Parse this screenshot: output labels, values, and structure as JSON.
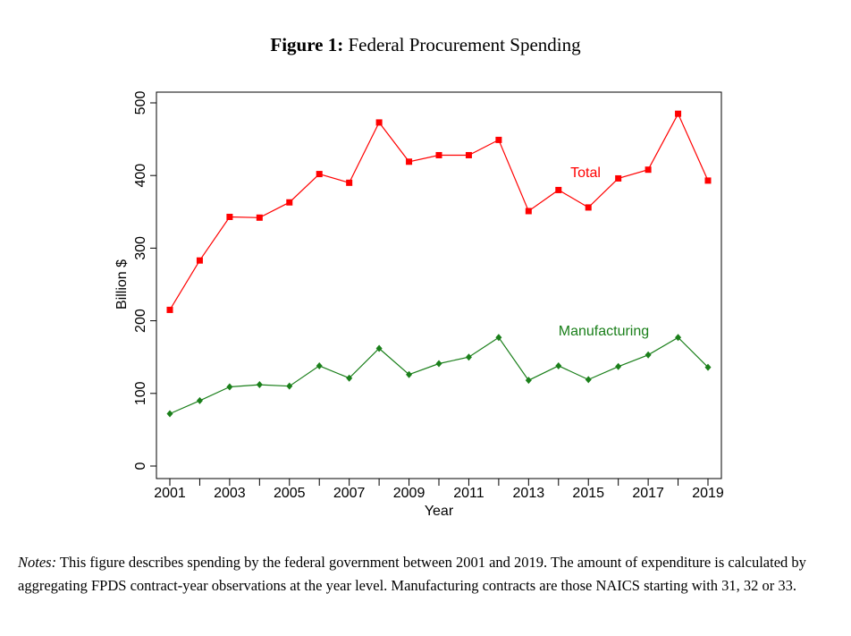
{
  "figure": {
    "number_label": "Figure 1:",
    "title": "Federal Procurement Spending"
  },
  "notes": {
    "label": "Notes:",
    "text": "This figure describes spending by the federal government between 2001 and 2019. The amount of expenditure is calculated by aggregating FPDS contract-year observations at the year level. Manufacturing contracts are those NAICS starting with 31, 32 or 33."
  },
  "chart_data": {
    "type": "line",
    "title": "",
    "xlabel": "Year",
    "ylabel": "Billion $",
    "x": [
      2001,
      2002,
      2003,
      2004,
      2005,
      2006,
      2007,
      2008,
      2009,
      2010,
      2011,
      2012,
      2013,
      2014,
      2015,
      2016,
      2017,
      2018,
      2019
    ],
    "xticks": [
      2001,
      2003,
      2005,
      2007,
      2009,
      2011,
      2013,
      2015,
      2017,
      2019
    ],
    "xminor": [
      2002,
      2004,
      2006,
      2008,
      2010,
      2012,
      2014,
      2016,
      2018
    ],
    "xlim": [
      2001,
      2019
    ],
    "yticks": [
      0,
      100,
      200,
      300,
      400,
      500
    ],
    "ylim": [
      0,
      500
    ],
    "grid": false,
    "legend": "none",
    "series": [
      {
        "name": "Total",
        "color": "#ff0000",
        "marker": "square",
        "values": [
          215,
          283,
          343,
          342,
          363,
          402,
          390,
          473,
          419,
          428,
          428,
          449,
          351,
          380,
          356,
          396,
          408,
          485,
          393
        ]
      },
      {
        "name": "Manufacturing",
        "color": "#1a7f1a",
        "marker": "diamond",
        "values": [
          72,
          90,
          109,
          112,
          110,
          138,
          121,
          162,
          126,
          141,
          150,
          177,
          118,
          138,
          119,
          137,
          153,
          177,
          136
        ]
      }
    ]
  }
}
